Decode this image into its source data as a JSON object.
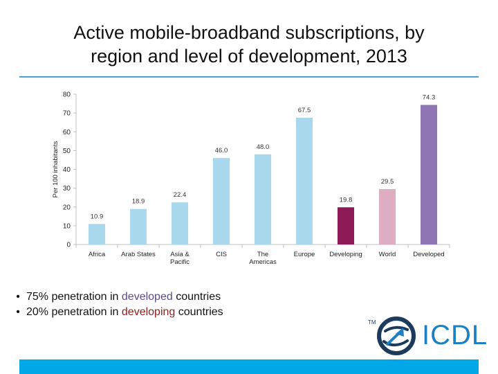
{
  "slide": {
    "title_line1": "Active mobile-broadband subscriptions, by",
    "title_line2": "region and level of development, 2013",
    "bullets": [
      {
        "pre": "75% penetration in ",
        "emph": "developed",
        "post": " countries"
      },
      {
        "pre": "20% penetration in ",
        "emph": "developing",
        "post": " countries"
      }
    ],
    "logo": {
      "text": "ICDL",
      "tm": "TM"
    }
  },
  "colors": {
    "accent_rule": "#4a9fcf",
    "footer_bar": "#00a8e8",
    "developed_text": "#5a4a86",
    "developing_text": "#8b2020",
    "logo_blue": "#1c80c2",
    "logo_navy": "#1b3a5c"
  },
  "chart_data": {
    "type": "bar",
    "title": "",
    "ylabel": "Per 100 inhabitants",
    "xlabel": "",
    "ylim": [
      0,
      80
    ],
    "yticks": [
      0,
      10,
      20,
      30,
      40,
      50,
      60,
      70,
      80
    ],
    "grid": false,
    "categories": [
      "Africa",
      "Arab States",
      "Asia & Pacific",
      "CIS",
      "The Americas",
      "Europe",
      "Developing",
      "World",
      "Developed"
    ],
    "category_lines": [
      [
        "Africa"
      ],
      [
        "Arab States"
      ],
      [
        "Asia &",
        "Pacific"
      ],
      [
        "CIS"
      ],
      [
        "The",
        "Americas"
      ],
      [
        "Europe"
      ],
      [
        "Developing"
      ],
      [
        "World"
      ],
      [
        "Developed"
      ]
    ],
    "values": [
      10.9,
      18.9,
      22.4,
      46.0,
      48.0,
      67.5,
      19.8,
      29.5,
      74.3
    ],
    "value_labels": [
      "10.9",
      "18.9",
      "22.4",
      "46.0",
      "48.0",
      "67.5",
      "19.8",
      "29.5",
      "74.3"
    ],
    "bar_colors": [
      "#a9d7eb",
      "#a9d7eb",
      "#a9d7eb",
      "#a9d7eb",
      "#a9d7eb",
      "#a9d7eb",
      "#8c1a55",
      "#dfadc2",
      "#8f75b3"
    ]
  }
}
